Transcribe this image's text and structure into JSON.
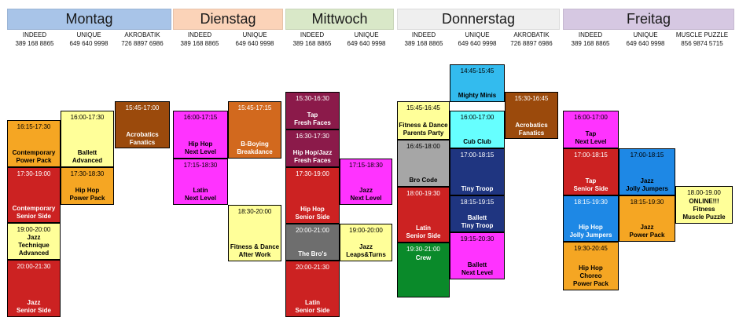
{
  "days": [
    {
      "id": "montag",
      "name": "Montag",
      "color": "#a8c4e8"
    },
    {
      "id": "dienstag",
      "name": "Dienstag",
      "color": "#fbd3b8"
    },
    {
      "id": "mittwoch",
      "name": "Mittwoch",
      "color": "#d9e8c8"
    },
    {
      "id": "donnerstag",
      "name": "Donnerstag",
      "color": "#efefef"
    },
    {
      "id": "freitag",
      "name": "Freitag",
      "color": "#d6c8e2"
    }
  ],
  "contacts": [
    {
      "name": "INDEED",
      "phone": "389 168 8865"
    },
    {
      "name": "UNIQUE",
      "phone": "649 640 9998"
    },
    {
      "name": "AKROBATIK",
      "phone": "726 8897 6986"
    },
    {
      "name": "INDEED",
      "phone": "389 168 8865"
    },
    {
      "name": "UNIQUE",
      "phone": "649 640 9998"
    },
    {
      "name": "INDEED",
      "phone": "389 168 8865"
    },
    {
      "name": "UNIQUE",
      "phone": "649 640 9998"
    },
    {
      "name": "INDEED",
      "phone": "389 168 8865"
    },
    {
      "name": "UNIQUE",
      "phone": "649 640 9998"
    },
    {
      "name": "AKROBATIK",
      "phone": "726 8897 6986"
    },
    {
      "name": "INDEED",
      "phone": "389 168 8865"
    },
    {
      "name": "UNIQUE",
      "phone": "649 640 9998"
    },
    {
      "name": "MUSCLE PUZZLE",
      "phone": "856 9874 5715"
    }
  ],
  "classes": [
    {
      "time": "16:15-17:30",
      "label": "Contemporary\nPower Pack",
      "color": "#f5a623",
      "text": "#000000"
    },
    {
      "time": "16:00-17:30",
      "label": "Ballett\nAdvanced",
      "color": "#ffff99",
      "text": "#000000"
    },
    {
      "time": "15:45-17:00",
      "label": "Acrobatics\nFanatics",
      "color": "#9b4a0c",
      "text": "#ffffff"
    },
    {
      "time": "17:30-19:00",
      "label": "Contemporary\nSenior Side",
      "color": "#cc2222",
      "text": "#ffffff"
    },
    {
      "time": "17:30-18:30",
      "label": "Hip Hop\nPower Pack",
      "color": "#f5a623",
      "text": "#000000"
    },
    {
      "time": "19:00-20:00",
      "label": "Jazz\nTechnique\nAdvanced",
      "color": "#ffff99",
      "text": "#000000"
    },
    {
      "time": "20:00-21:30",
      "label": "Jazz\nSenior Side",
      "color": "#cc2222",
      "text": "#ffffff"
    },
    {
      "time": "16:00-17:15",
      "label": "Hip Hop\nNext Level",
      "color": "#ff33ff",
      "text": "#000000"
    },
    {
      "time": "15:45-17:15",
      "label": "B-Boying\nBreakdance",
      "color": "#d2691e",
      "text": "#ffffff"
    },
    {
      "time": "17:15-18:30",
      "label": "Latin\nNext Level",
      "color": "#ff33ff",
      "text": "#000000"
    },
    {
      "time": "18:30-20:00",
      "label": "Fitness & Dance\nAfter Work",
      "color": "#ffff99",
      "text": "#000000"
    },
    {
      "time": "15:30-16:30",
      "label": "Tap\nFresh Faces",
      "color": "#8b1a4a",
      "text": "#ffffff"
    },
    {
      "time": "16:30-17:30",
      "label": "Hip Hop/Jazz\nFresh Faces",
      "color": "#8b1a4a",
      "text": "#ffffff"
    },
    {
      "time": "17:15-18:30",
      "label": "Jazz\nNext Level",
      "color": "#ff33ff",
      "text": "#000000"
    },
    {
      "time": "17:30-19:00",
      "label": "Hip Hop\nSenior Side",
      "color": "#cc2222",
      "text": "#ffffff"
    },
    {
      "time": "20:00-21:00",
      "label": "The Bro's",
      "color": "#6e6e6e",
      "text": "#ffffff"
    },
    {
      "time": "19:00-20:00",
      "label": "Jazz\nLeaps&Turns",
      "color": "#ffff99",
      "text": "#000000"
    },
    {
      "time": "20:00-21:30",
      "label": "Latin\nSenior Side",
      "color": "#cc2222",
      "text": "#ffffff"
    },
    {
      "time": "15:45-16:45",
      "label": "Fitness & Dance\nParents Party",
      "color": "#ffff99",
      "text": "#000000"
    },
    {
      "time": "14:45-15:45",
      "label": "Mighty Minis",
      "color": "#33bbee",
      "text": "#000000"
    },
    {
      "time": "15:30-16:45",
      "label": "Acrobatics\nFanatics",
      "color": "#9b4a0c",
      "text": "#ffffff"
    },
    {
      "time": "16:00-17:00",
      "label": "Cub Club",
      "color": "#66ffff",
      "text": "#000000"
    },
    {
      "time": "16:45-18:00",
      "label": "Bro Code",
      "color": "#a6a6a6",
      "text": "#000000"
    },
    {
      "time": "17:00-18:15",
      "label": "Tiny Troop",
      "color": "#1f3580",
      "text": "#ffffff"
    },
    {
      "time": "18:00-19:30",
      "label": "Latin\nSenior Side",
      "color": "#cc2222",
      "text": "#ffffff"
    },
    {
      "time": "18:15-19:15",
      "label": "Ballett\nTiny Troop",
      "color": "#1f3580",
      "text": "#ffffff"
    },
    {
      "time": "19:15-20:30",
      "label": "Ballett\nNext Level",
      "color": "#ff33ff",
      "text": "#000000"
    },
    {
      "time": "19:30-21:00",
      "label": "Crew",
      "color": "#0a8a2a",
      "text": "#ffffff"
    },
    {
      "time": "16:00-17:00",
      "label": "Tap\nNext Level",
      "color": "#ff33ff",
      "text": "#000000"
    },
    {
      "time": "17:00-18:15",
      "label": "Tap\nSenior Side",
      "color": "#cc2222",
      "text": "#ffffff"
    },
    {
      "time": "17:00-18:15",
      "label": "Jazz\nJolly Jumpers",
      "color": "#1e88e5",
      "text": "#000000"
    },
    {
      "time": "18.00-19.00",
      "label": "ONLINE!!!\nFitness\nMuscle Puzzle",
      "color": "#ffff99",
      "text": "#000000"
    },
    {
      "time": "18:15-19:30",
      "label": "Hip Hop\nJolly Jumpers",
      "color": "#1e88e5",
      "text": "#ffffff"
    },
    {
      "time": "18:15-19:30",
      "label": "Jazz\nPower Pack",
      "color": "#f5a623",
      "text": "#000000"
    },
    {
      "time": "19:30-20:45",
      "label": "Hip Hop\nChoreo\nPower Pack",
      "color": "#f5a623",
      "text": "#000000"
    }
  ]
}
